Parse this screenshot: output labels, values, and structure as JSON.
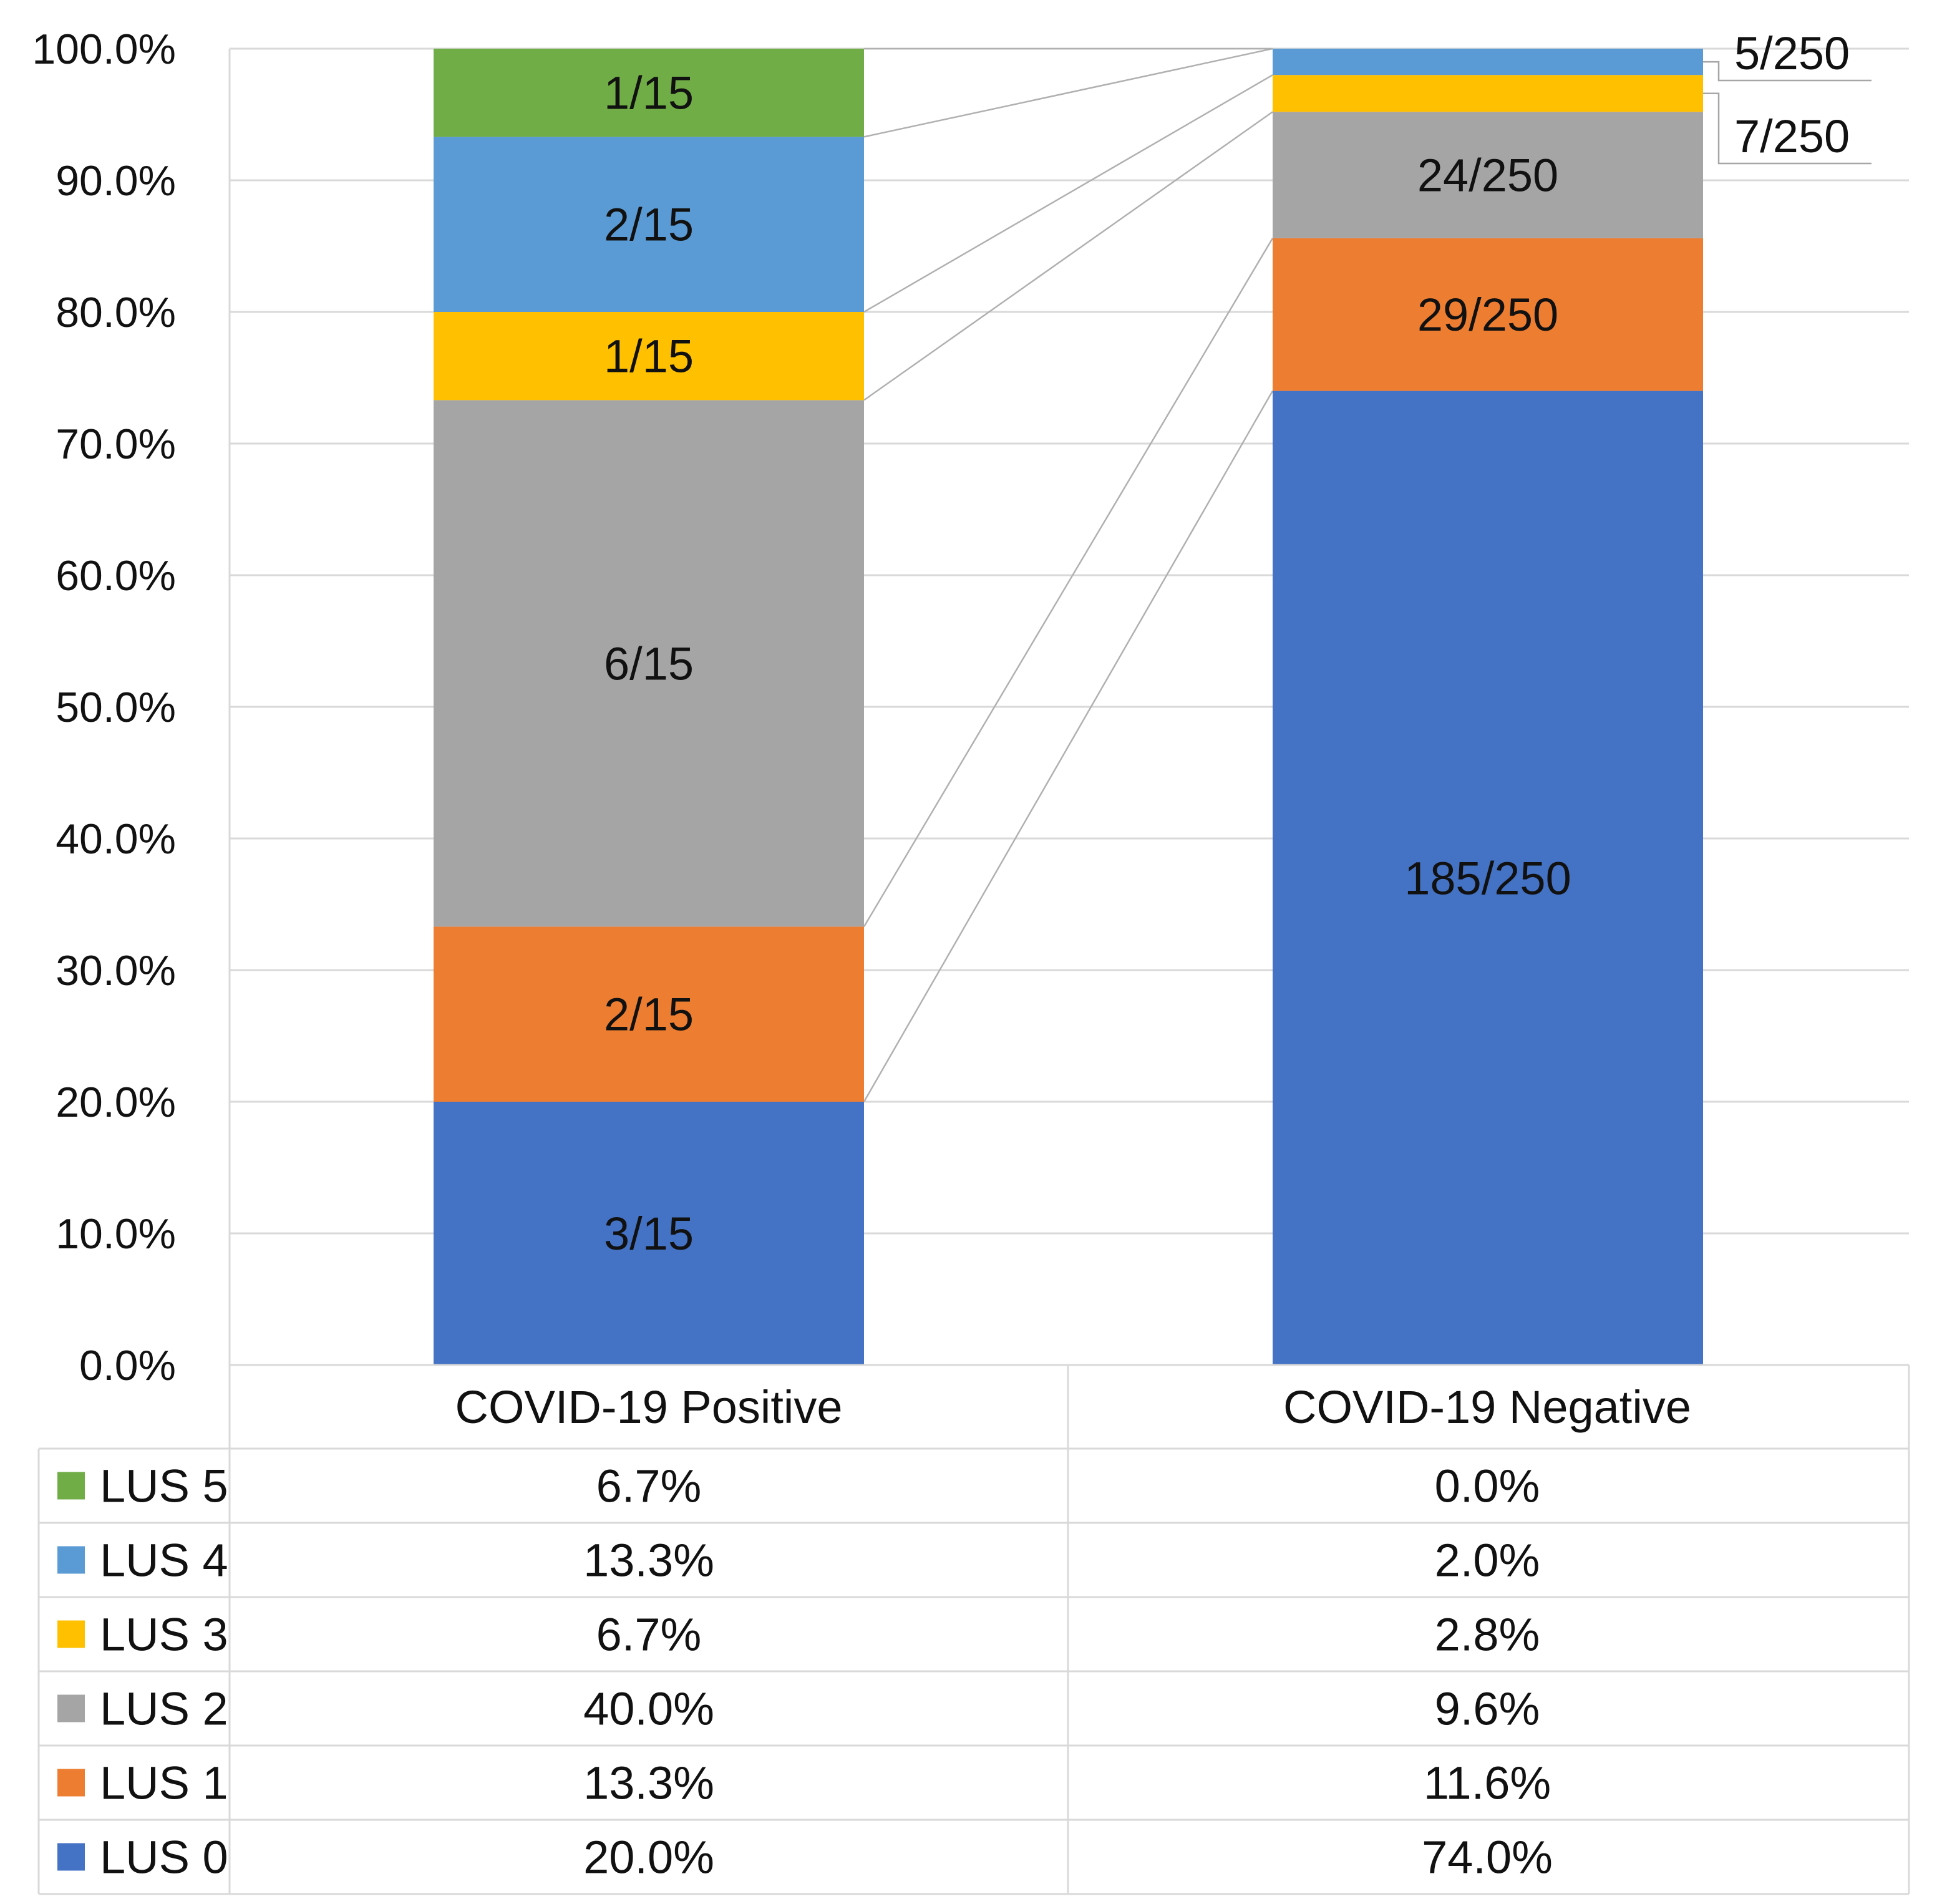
{
  "chart_data": {
    "type": "bar",
    "stacked": true,
    "percent_stacked": true,
    "title": "",
    "xlabel": "",
    "ylabel": "",
    "ylim": [
      0,
      100
    ],
    "y_ticks": [
      "0.0%",
      "10.0%",
      "20.0%",
      "30.0%",
      "40.0%",
      "50.0%",
      "60.0%",
      "70.0%",
      "80.0%",
      "90.0%",
      "100.0%"
    ],
    "grid": true,
    "categories": [
      "COVID-19 Positive",
      "COVID-19 Negative"
    ],
    "series": [
      {
        "name": "LUS 0",
        "color": "#4472C4",
        "values": [
          20.0,
          74.0
        ],
        "value_labels": [
          "20.0%",
          "74.0%"
        ],
        "bar_labels": [
          "3/15",
          "185/250"
        ]
      },
      {
        "name": "LUS 1",
        "color": "#ED7D31",
        "values": [
          13.3,
          11.6
        ],
        "value_labels": [
          "13.3%",
          "11.6%"
        ],
        "bar_labels": [
          "2/15",
          "29/250"
        ]
      },
      {
        "name": "LUS 2",
        "color": "#A5A5A5",
        "values": [
          40.0,
          9.6
        ],
        "value_labels": [
          "40.0%",
          "9.6%"
        ],
        "bar_labels": [
          "6/15",
          "24/250"
        ]
      },
      {
        "name": "LUS 3",
        "color": "#FFC000",
        "values": [
          6.7,
          2.8
        ],
        "value_labels": [
          "6.7%",
          "2.8%"
        ],
        "bar_labels": [
          "1/15",
          "7/250"
        ]
      },
      {
        "name": "LUS 4",
        "color": "#5B9BD5",
        "values": [
          13.3,
          2.0
        ],
        "value_labels": [
          "13.3%",
          "2.0%"
        ],
        "bar_labels": [
          "2/15",
          "5/250"
        ]
      },
      {
        "name": "LUS 5",
        "color": "#70AD47",
        "values": [
          6.7,
          0.0
        ],
        "value_labels": [
          "6.7%",
          "0.0%"
        ],
        "bar_labels": [
          "1/15",
          ""
        ]
      }
    ],
    "legend": "data-table-below"
  }
}
